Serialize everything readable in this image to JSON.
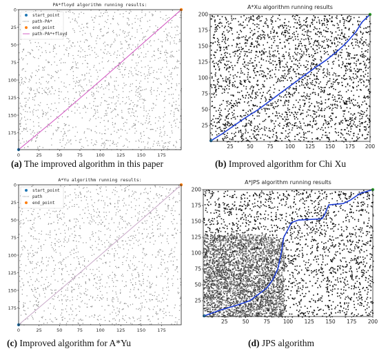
{
  "captions": {
    "a": {
      "letter": "(a)",
      "text": " The improved algorithm in this paper"
    },
    "b": {
      "letter": "(b)",
      "text": " Improved algorithm for Chi Xu"
    },
    "c": {
      "letter": "(c)",
      "text": " Improved algorithm for A*Yu"
    },
    "d": {
      "letter": "(d)",
      "text": " JPS algorithm"
    }
  },
  "colors": {
    "obstacle_light": "#8a8a8a",
    "obstacle_dark": "#111111",
    "path_blue": "#1f3fd6",
    "path_magenta": "#d04fbf",
    "start": "#1f77b4",
    "end": "#ff7f0e",
    "visited": "#555555"
  },
  "chart_data": [
    {
      "id": "a",
      "type": "scatter",
      "title": "PA*floyd algorithm running results:",
      "style": "light-grid",
      "xlim": [
        0,
        199
      ],
      "ylim": [
        0,
        199
      ],
      "y_inverted": true,
      "xticks": [
        "0",
        "25",
        "50",
        "75",
        "100",
        "125",
        "150",
        "175"
      ],
      "yticks": [
        "0",
        "25",
        "50",
        "75",
        "100",
        "125",
        "150",
        "175"
      ],
      "legend": {
        "position": "top-left",
        "entries": [
          {
            "label": "start_point",
            "marker": "dot",
            "color": "#1f77b4"
          },
          {
            "label": "path-PA*",
            "marker": "dotted-line",
            "color": "#888888"
          },
          {
            "label": "end_point",
            "marker": "dot",
            "color": "#ff7f0e"
          },
          {
            "label": "path-PA*+floyd",
            "marker": "line",
            "color": "#d04fbf"
          }
        ]
      },
      "start_point": [
        0,
        199
      ],
      "end_point": [
        199,
        0
      ],
      "paths": [
        {
          "name": "path-PA*+floyd",
          "color": "#d04fbf",
          "points": [
            [
              0,
              199
            ],
            [
              50,
              151
            ],
            [
              100,
              101
            ],
            [
              150,
              50
            ],
            [
              199,
              0
            ]
          ]
        }
      ]
    },
    {
      "id": "b",
      "type": "scatter",
      "title": "A*Xu algorithm running results",
      "style": "dense-black",
      "xlim": [
        0,
        200
      ],
      "ylim": [
        0,
        200
      ],
      "y_inverted": false,
      "xticks": [
        "25",
        "50",
        "75",
        "100",
        "125",
        "150",
        "175",
        "200"
      ],
      "yticks": [
        "25",
        "50",
        "75",
        "100",
        "125",
        "150",
        "175",
        "200"
      ],
      "start_point": [
        1,
        1
      ],
      "end_point": [
        200,
        200
      ],
      "paths": [
        {
          "name": "path",
          "color": "#1f3fd6",
          "points": [
            [
              1,
              1
            ],
            [
              15,
              12
            ],
            [
              30,
              25
            ],
            [
              45,
              38
            ],
            [
              60,
              50
            ],
            [
              75,
              64
            ],
            [
              90,
              78
            ],
            [
              105,
              92
            ],
            [
              118,
              104
            ],
            [
              130,
              115
            ],
            [
              145,
              128
            ],
            [
              158,
              141
            ],
            [
              170,
              155
            ],
            [
              182,
              172
            ],
            [
              190,
              188
            ],
            [
              200,
              200
            ]
          ]
        }
      ]
    },
    {
      "id": "c",
      "type": "scatter",
      "title": "A*Yu algorithm running results:",
      "style": "light-grid",
      "xlim": [
        0,
        199
      ],
      "ylim": [
        0,
        199
      ],
      "y_inverted": true,
      "xticks": [
        "0",
        "25",
        "50",
        "75",
        "100",
        "125",
        "150",
        "175"
      ],
      "yticks": [
        "0",
        "25",
        "50",
        "75",
        "100",
        "125",
        "150",
        "175"
      ],
      "legend": {
        "position": "top-left",
        "entries": [
          {
            "label": "start_point",
            "marker": "dot",
            "color": "#1f77b4"
          },
          {
            "label": "path",
            "marker": "dotted-line",
            "color": "#888888"
          },
          {
            "label": "end_point",
            "marker": "dot",
            "color": "#ff7f0e"
          }
        ]
      },
      "start_point": [
        0,
        199
      ],
      "end_point": [
        199,
        0
      ],
      "paths": [
        {
          "name": "path",
          "color": "#c8a8c8",
          "points": [
            [
              0,
              199
            ],
            [
              50,
              150
            ],
            [
              100,
              100
            ],
            [
              150,
              50
            ],
            [
              199,
              0
            ]
          ]
        }
      ]
    },
    {
      "id": "d",
      "type": "scatter",
      "title": "A*JPS algorithm running results",
      "style": "dense-black",
      "xlim": [
        0,
        200
      ],
      "ylim": [
        0,
        200
      ],
      "y_inverted": false,
      "xticks": [
        "25",
        "50",
        "75",
        "100",
        "125",
        "150",
        "175",
        "200"
      ],
      "yticks": [
        "25",
        "50",
        "75",
        "100",
        "125",
        "150",
        "175",
        "200"
      ],
      "explored_region": {
        "x": [
          0,
          95
        ],
        "y": [
          0,
          130
        ]
      },
      "start_point": [
        1,
        1
      ],
      "end_point": [
        200,
        200
      ],
      "paths": [
        {
          "name": "path",
          "color": "#1f3fd6",
          "points": [
            [
              1,
              1
            ],
            [
              20,
              10
            ],
            [
              40,
              18
            ],
            [
              55,
              25
            ],
            [
              65,
              35
            ],
            [
              75,
              45
            ],
            [
              82,
              58
            ],
            [
              88,
              75
            ],
            [
              92,
              100
            ],
            [
              95,
              125
            ],
            [
              99,
              135
            ],
            [
              104,
              148
            ],
            [
              112,
              152
            ],
            [
              140,
              154
            ],
            [
              143,
              160
            ],
            [
              148,
              176
            ],
            [
              165,
              178
            ],
            [
              173,
              183
            ],
            [
              185,
              194
            ],
            [
              200,
              200
            ]
          ]
        }
      ]
    }
  ]
}
